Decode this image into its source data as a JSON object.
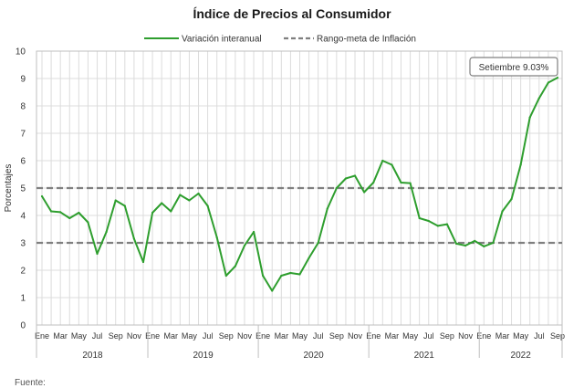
{
  "chart_data": {
    "type": "line",
    "title": "Índice de Precios al Consumidor",
    "ylabel": "Porcentajes",
    "ylim": [
      0,
      10
    ],
    "yticks": [
      0,
      1,
      2,
      3,
      4,
      5,
      6,
      7,
      8,
      9,
      10
    ],
    "grid": true,
    "legend_position": "top",
    "x_tick_labels": [
      "Ene",
      "Mar",
      "May",
      "Jul",
      "Sep",
      "Nov",
      "Ene",
      "Mar",
      "May",
      "Jul",
      "Sep",
      "Nov",
      "Ene",
      "Mar",
      "May",
      "Jul",
      "Sep",
      "Nov",
      "Ene",
      "Mar",
      "May",
      "Jul",
      "Sep",
      "Nov",
      "Ene",
      "Mar",
      "May",
      "Jul",
      "Sep"
    ],
    "years": [
      "2018",
      "2019",
      "2020",
      "2021",
      "2022"
    ],
    "series": [
      {
        "name": "Variación interanual",
        "color": "#2e9e2e",
        "style": "solid",
        "values": [
          4.7,
          4.15,
          4.12,
          3.9,
          4.1,
          3.75,
          2.6,
          3.4,
          4.55,
          4.35,
          3.15,
          2.3,
          4.1,
          4.45,
          4.15,
          4.75,
          4.55,
          4.8,
          4.35,
          3.2,
          1.8,
          2.15,
          2.9,
          3.4,
          1.8,
          1.25,
          1.8,
          1.9,
          1.85,
          2.45,
          3.0,
          4.25,
          5.0,
          5.35,
          5.45,
          4.85,
          5.2,
          6.0,
          5.85,
          5.2,
          5.18,
          3.9,
          3.8,
          3.62,
          3.68,
          2.97,
          2.9,
          3.07,
          2.87,
          3.0,
          4.15,
          4.6,
          5.85,
          7.58,
          8.28,
          8.85,
          9.03
        ]
      },
      {
        "name": "Rango-meta de Inflación",
        "color": "#7f7f7f",
        "style": "dashed",
        "lines": [
          3,
          5
        ]
      }
    ],
    "annotation": {
      "text": "Setiembre 9.03%",
      "value": 9.03
    }
  },
  "footer": {
    "source_label": "Fuente:"
  }
}
